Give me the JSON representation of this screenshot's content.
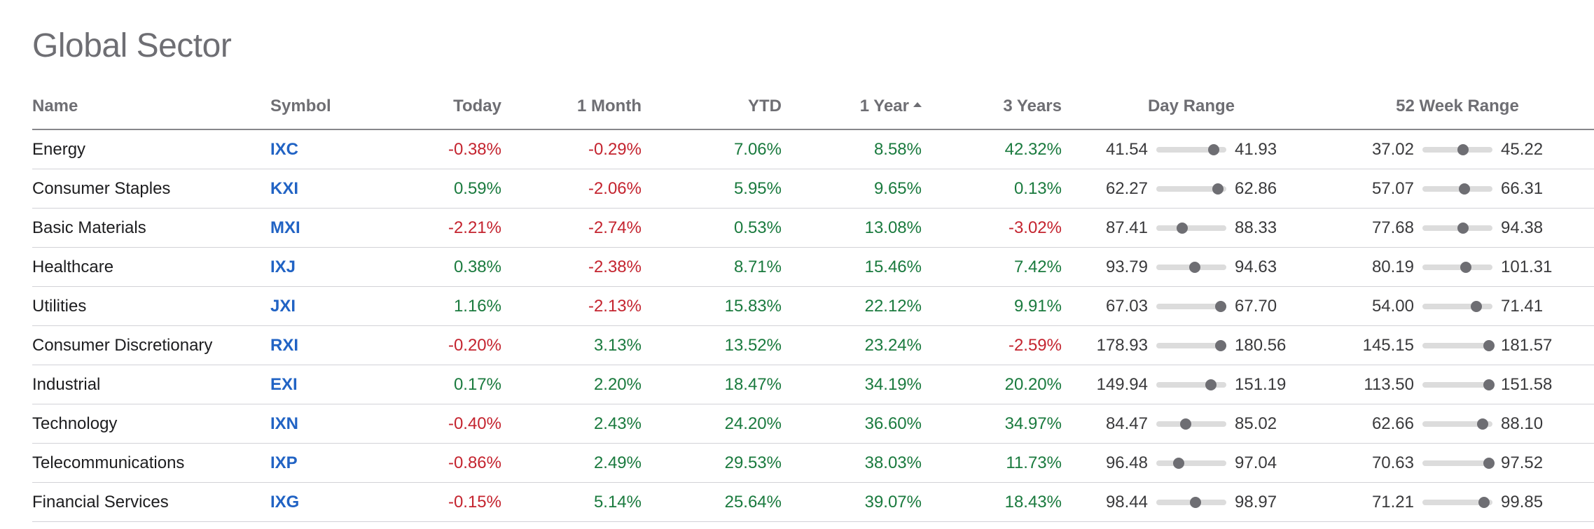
{
  "page": {
    "title": "Global Sector"
  },
  "table": {
    "columns": {
      "name": "Name",
      "symbol": "Symbol",
      "today": "Today",
      "one_month": "1 Month",
      "ytd": "YTD",
      "one_year": "1 Year",
      "three_years": "3 Years",
      "day_range": "Day Range",
      "week52_range": "52 Week Range"
    },
    "sort": {
      "column": "1 Year",
      "direction": "ascending"
    },
    "rows": [
      {
        "name": "Energy",
        "symbol": "IXC",
        "today": "-0.38%",
        "one_month": "-0.29%",
        "ytd": "7.06%",
        "one_year": "8.58%",
        "three_years": "42.32%",
        "day_low": "41.54",
        "day_high": "41.93",
        "day_current": 0.82,
        "wk_low": "37.02",
        "wk_high": "45.22",
        "wk_current": 0.58
      },
      {
        "name": "Consumer Staples",
        "symbol": "KXI",
        "today": "0.59%",
        "one_month": "-2.06%",
        "ytd": "5.95%",
        "one_year": "9.65%",
        "three_years": "0.13%",
        "day_low": "62.27",
        "day_high": "62.86",
        "day_current": 0.88,
        "wk_low": "57.07",
        "wk_high": "66.31",
        "wk_current": 0.6
      },
      {
        "name": "Basic Materials",
        "symbol": "MXI",
        "today": "-2.21%",
        "one_month": "-2.74%",
        "ytd": "0.53%",
        "one_year": "13.08%",
        "three_years": "-3.02%",
        "day_low": "87.41",
        "day_high": "88.33",
        "day_current": 0.37,
        "wk_low": "77.68",
        "wk_high": "94.38",
        "wk_current": 0.58
      },
      {
        "name": "Healthcare",
        "symbol": "IXJ",
        "today": "0.38%",
        "one_month": "-2.38%",
        "ytd": "8.71%",
        "one_year": "15.46%",
        "three_years": "7.42%",
        "day_low": "93.79",
        "day_high": "94.63",
        "day_current": 0.55,
        "wk_low": "80.19",
        "wk_high": "101.31",
        "wk_current": 0.62
      },
      {
        "name": "Utilities",
        "symbol": "JXI",
        "today": "1.16%",
        "one_month": "-2.13%",
        "ytd": "15.83%",
        "one_year": "22.12%",
        "three_years": "9.91%",
        "day_low": "67.03",
        "day_high": "67.70",
        "day_current": 0.92,
        "wk_low": "54.00",
        "wk_high": "71.41",
        "wk_current": 0.77
      },
      {
        "name": "Consumer Discretionary",
        "symbol": "RXI",
        "today": "-0.20%",
        "one_month": "3.13%",
        "ytd": "13.52%",
        "one_year": "23.24%",
        "three_years": "-2.59%",
        "day_low": "178.93",
        "day_high": "180.56",
        "day_current": 0.92,
        "wk_low": "145.15",
        "wk_high": "181.57",
        "wk_current": 0.95
      },
      {
        "name": "Industrial",
        "symbol": "EXI",
        "today": "0.17%",
        "one_month": "2.20%",
        "ytd": "18.47%",
        "one_year": "34.19%",
        "three_years": "20.20%",
        "day_low": "149.94",
        "day_high": "151.19",
        "day_current": 0.78,
        "wk_low": "113.50",
        "wk_high": "151.58",
        "wk_current": 0.95
      },
      {
        "name": "Technology",
        "symbol": "IXN",
        "today": "-0.40%",
        "one_month": "2.43%",
        "ytd": "24.20%",
        "one_year": "36.60%",
        "three_years": "34.97%",
        "day_low": "84.47",
        "day_high": "85.02",
        "day_current": 0.42,
        "wk_low": "62.66",
        "wk_high": "88.10",
        "wk_current": 0.86
      },
      {
        "name": "Telecommunications",
        "symbol": "IXP",
        "today": "-0.86%",
        "one_month": "2.49%",
        "ytd": "29.53%",
        "one_year": "38.03%",
        "three_years": "11.73%",
        "day_low": "96.48",
        "day_high": "97.04",
        "day_current": 0.32,
        "wk_low": "70.63",
        "wk_high": "97.52",
        "wk_current": 0.95
      },
      {
        "name": "Financial Services",
        "symbol": "IXG",
        "today": "-0.15%",
        "one_month": "5.14%",
        "ytd": "25.64%",
        "one_year": "39.07%",
        "three_years": "18.43%",
        "day_low": "98.44",
        "day_high": "98.97",
        "day_current": 0.56,
        "wk_low": "71.21",
        "wk_high": "99.85",
        "wk_current": 0.88
      }
    ]
  },
  "colors": {
    "positive": "#1a7a3e",
    "negative": "#c4242f",
    "symbol_link": "#2163c4",
    "title": "#6e6e73"
  }
}
